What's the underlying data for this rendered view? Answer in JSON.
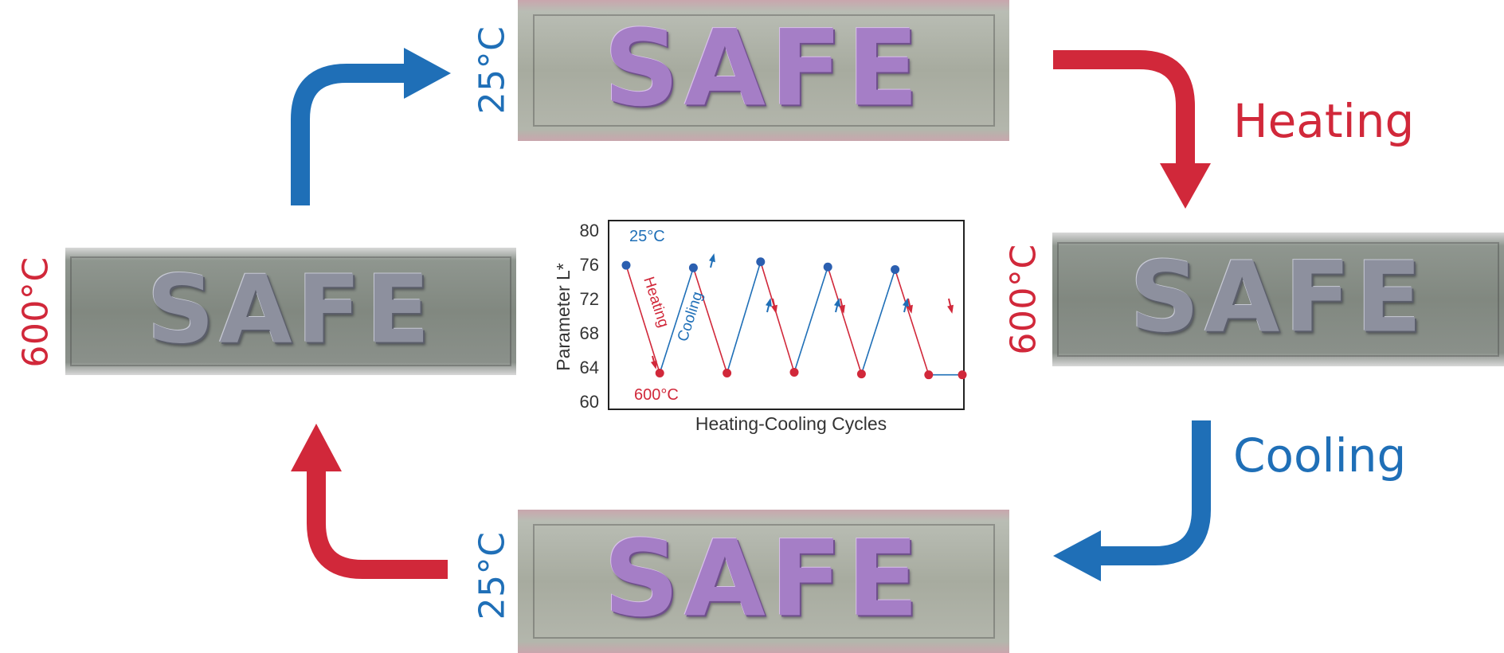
{
  "labels": {
    "top_temp": "25°C",
    "bottom_temp": "25°C",
    "left_temp": "600°C",
    "right_temp": "600°C",
    "heating": "Heating",
    "cooling": "Cooling",
    "plate_text": "SAFE"
  },
  "colors": {
    "blue": "#1f6fb7",
    "red": "#d1283a",
    "pink_pigment": "#a57ec6",
    "grey_pigment": "#8d909e"
  },
  "chart_data": {
    "type": "line",
    "xlabel": "Heating-Cooling Cycles",
    "ylabel": "Parameter L*",
    "ylim": [
      60,
      80
    ],
    "yticks": [
      "60",
      "64",
      "68",
      "72",
      "76",
      "80"
    ],
    "series": [
      {
        "x": [
          1,
          2,
          3,
          4,
          5,
          6,
          7,
          8,
          9,
          10,
          11
        ],
        "values": [
          75.9,
          63.3,
          75.6,
          63.3,
          76.3,
          63.4,
          75.7,
          63.2,
          75.4,
          63.1,
          null
        ]
      }
    ],
    "points_last": 63.1,
    "annotations": {
      "high_label": "25°C",
      "low_label": "600°C",
      "heating_label": "Heating",
      "cooling_label": "Cooling"
    }
  }
}
